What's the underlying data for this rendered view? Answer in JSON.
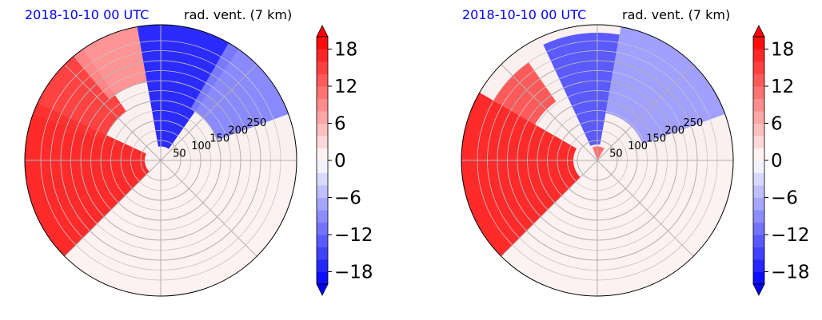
{
  "chart_data": [
    {
      "type": "polar-contourf",
      "title_left": "2018-10-10 00 UTC",
      "title_right": "rad. vent. (7 km)",
      "title_left_color": "#0000ff",
      "radial_ticks": [
        "50",
        "100",
        "150",
        "200",
        "250"
      ],
      "rmax": 340,
      "regions": [
        {
          "kind": "red",
          "value": 18,
          "from_deg": 155,
          "to_deg": 225,
          "r_from": 40,
          "r_to": 340
        },
        {
          "kind": "red",
          "value": 16,
          "from_deg": 125,
          "to_deg": 160,
          "r_from": 150,
          "r_to": 340
        },
        {
          "kind": "blue",
          "value": -18,
          "from_deg": 55,
          "to_deg": 100,
          "r_from": 35,
          "r_to": 340
        },
        {
          "kind": "blue",
          "value": -10,
          "from_deg": 20,
          "to_deg": 60,
          "r_from": 150,
          "r_to": 340
        },
        {
          "kind": "red",
          "value": 9,
          "from_deg": 100,
          "to_deg": 130,
          "r_from": 200,
          "r_to": 340
        },
        {
          "kind": "pale-red",
          "value": 1,
          "from_deg": 225,
          "to_deg": 360,
          "r_from": 0,
          "r_to": 340
        }
      ]
    },
    {
      "type": "polar-contourf",
      "title_left": "2018-10-10 00 UTC",
      "title_right": "rad. vent. (7 km)",
      "title_left_color": "#0000ff",
      "radial_ticks": [
        "50",
        "100",
        "150",
        "200",
        "250"
      ],
      "rmax": 340,
      "regions": [
        {
          "kind": "red",
          "value": 18,
          "from_deg": 150,
          "to_deg": 225,
          "r_from": 60,
          "r_to": 340
        },
        {
          "kind": "red",
          "value": 14,
          "from_deg": 125,
          "to_deg": 150,
          "r_from": 180,
          "r_to": 300
        },
        {
          "kind": "blue",
          "value": -14,
          "from_deg": 80,
          "to_deg": 115,
          "r_from": 40,
          "r_to": 320
        },
        {
          "kind": "blue",
          "value": -8,
          "from_deg": 20,
          "to_deg": 80,
          "r_from": 120,
          "r_to": 340
        },
        {
          "kind": "red",
          "value": 12,
          "from_deg": 60,
          "to_deg": 110,
          "r_from": 0,
          "r_to": 35
        },
        {
          "kind": "pale-red",
          "value": 1,
          "from_deg": 225,
          "to_deg": 360,
          "r_from": 0,
          "r_to": 340
        }
      ]
    }
  ],
  "colorbar": {
    "ticks": [
      "18",
      "12",
      "6",
      "0",
      "−6",
      "−12",
      "−18"
    ],
    "tick_values": [
      18,
      12,
      6,
      0,
      -6,
      -12,
      -18
    ],
    "vmin": -20,
    "vmax": 20,
    "extend": "both",
    "cmap": "bwr"
  }
}
